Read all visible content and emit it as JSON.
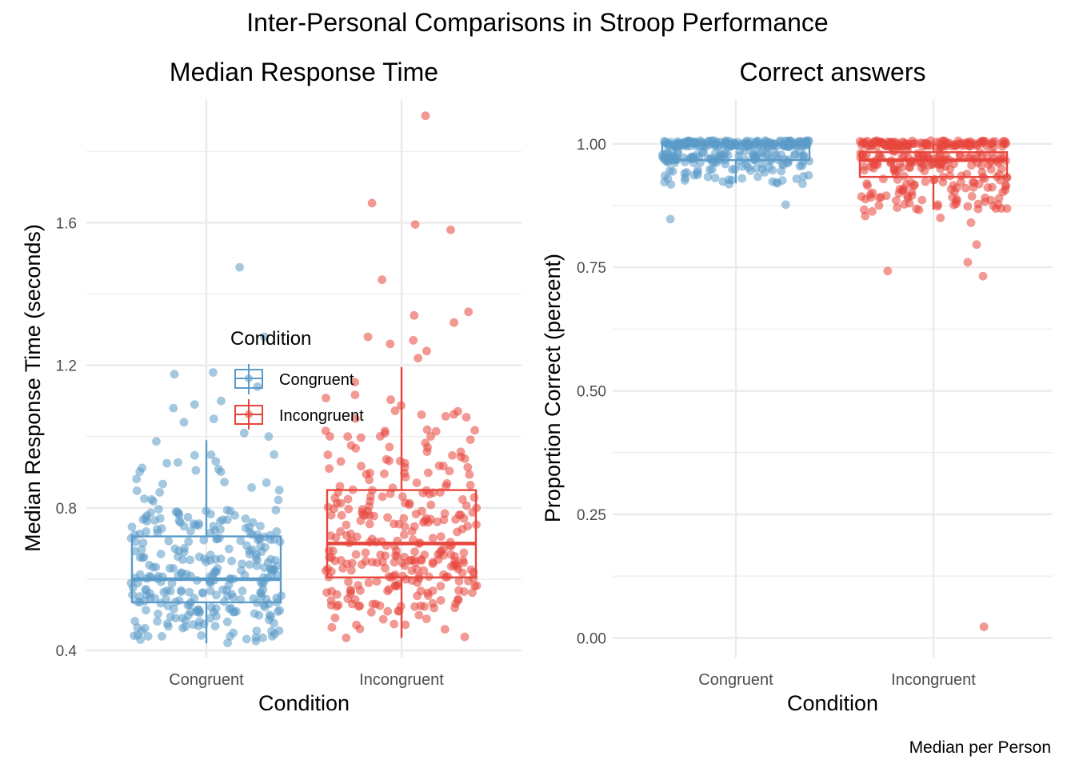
{
  "figure": {
    "title": "Inter-Personal Comparisons in Stroop Performance",
    "caption": "Median per Person"
  },
  "colors": {
    "congruent": "#5b9bc8",
    "incongruent": "#e8453c",
    "grid": "#ebebeb",
    "text": "#000000",
    "tick_text": "#4d4d4d"
  },
  "legend": {
    "title": "Condition",
    "placement": "inside-left-panel",
    "items": [
      "Congruent",
      "Incongruent"
    ]
  },
  "chart_data": [
    {
      "type": "box-jitter",
      "title": "Median Response Time",
      "xlabel": "Condition",
      "ylabel": "Median Response Time (seconds)",
      "categories": [
        "Congruent",
        "Incongruent"
      ],
      "ylim": [
        0.38,
        1.96
      ],
      "yticks": [
        0.4,
        0.8,
        1.2,
        1.6
      ],
      "yticklabels": [
        "0.4",
        "0.8",
        "1.2",
        "1.6"
      ],
      "grid": true,
      "boxes": [
        {
          "name": "Congruent",
          "q1": 0.535,
          "median": 0.6,
          "q3": 0.72,
          "whisker_low": 0.42,
          "whisker_high": 0.99
        },
        {
          "name": "Incongruent",
          "q1": 0.605,
          "median": 0.7,
          "q3": 0.85,
          "whisker_low": 0.435,
          "whisker_high": 1.195
        }
      ],
      "outliers": [
        {
          "category": "Congruent",
          "values": [
            1.475,
            1.28,
            1.18,
            1.175,
            1.14,
            1.1,
            1.09,
            1.08,
            1.05,
            1.04,
            1.01,
            1.0
          ]
        },
        {
          "category": "Incongruent",
          "values": [
            1.9,
            1.655,
            1.595,
            1.58,
            1.44,
            1.35,
            1.34,
            1.32,
            1.28,
            1.27,
            1.26,
            1.24,
            1.22
          ]
        }
      ],
      "points_summary": [
        {
          "category": "Congruent",
          "n_approx": 300,
          "range": [
            0.42,
            1.475
          ]
        },
        {
          "category": "Incongruent",
          "n_approx": 300,
          "range": [
            0.435,
            1.9
          ]
        }
      ]
    },
    {
      "type": "box-jitter",
      "title": "Correct answers",
      "xlabel": "Condition",
      "ylabel": "Proportion Correct (percent)",
      "categories": [
        "Congruent",
        "Incongruent"
      ],
      "ylim": [
        -0.04,
        1.1
      ],
      "yticks": [
        0.0,
        0.25,
        0.5,
        0.75,
        1.0
      ],
      "yticklabels": [
        "0.00",
        "0.25",
        "0.50",
        "0.75",
        "1.00"
      ],
      "grid": true,
      "boxes": [
        {
          "name": "Congruent",
          "q1": 0.967,
          "median": 1.0,
          "q3": 1.0,
          "whisker_low": 0.92,
          "whisker_high": 1.0
        },
        {
          "name": "Incongruent",
          "q1": 0.933,
          "median": 0.967,
          "q3": 0.983,
          "whisker_low": 0.867,
          "whisker_high": 1.0
        }
      ],
      "outliers": [
        {
          "category": "Congruent",
          "values": [
            0.883,
            0.85
          ]
        },
        {
          "category": "Incongruent",
          "values": [
            0.867,
            0.85,
            0.85,
            0.84,
            0.8,
            0.76,
            0.745,
            0.733,
            0.02
          ]
        }
      ],
      "points_summary": [
        {
          "category": "Congruent",
          "n_approx": 300,
          "range": [
            0.85,
            1.0
          ]
        },
        {
          "category": "Incongruent",
          "n_approx": 300,
          "range": [
            0.02,
            1.0
          ]
        }
      ]
    }
  ]
}
